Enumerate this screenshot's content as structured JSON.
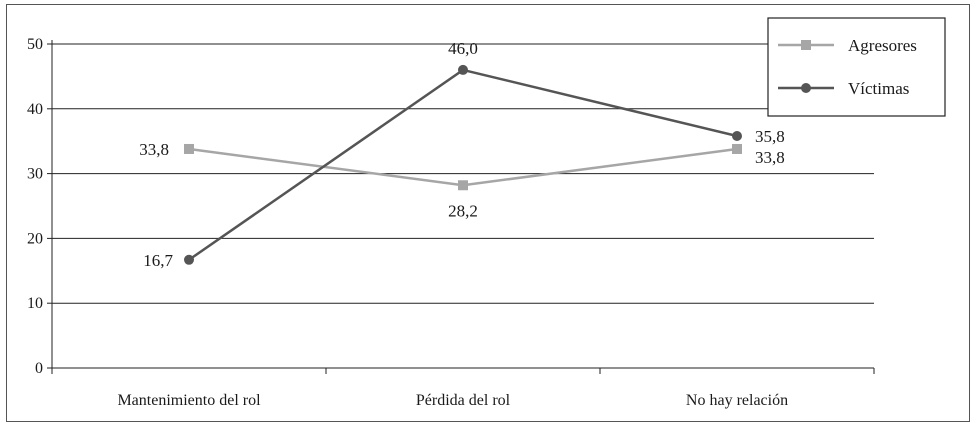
{
  "chart_data": {
    "type": "line",
    "categories": [
      "Mantenimiento del rol",
      "Pérdida del rol",
      "No hay relación"
    ],
    "series": [
      {
        "name": "Agresores",
        "values": [
          33.8,
          28.2,
          33.8
        ],
        "labels": [
          "33,8",
          "28,2",
          "33,8"
        ],
        "color": "#a6a6a6",
        "marker": "square"
      },
      {
        "name": "Víctimas",
        "values": [
          16.7,
          46.0,
          35.8
        ],
        "labels": [
          "16,7",
          "46,0",
          "35,8"
        ],
        "color": "#555555",
        "marker": "circle"
      }
    ],
    "y_ticks": [
      "0",
      "10",
      "20",
      "30",
      "40",
      "50"
    ],
    "ylim": [
      0,
      50
    ],
    "grid": true,
    "legend_position": "top-right"
  }
}
